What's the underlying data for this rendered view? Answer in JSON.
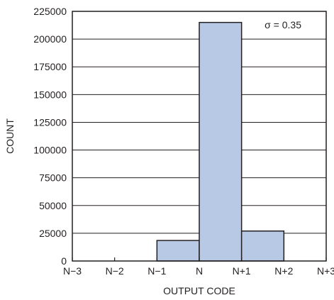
{
  "chart_data": {
    "type": "bar",
    "title": "",
    "xlabel": "OUTPUT CODE",
    "ylabel": "COUNT",
    "annotation": "σ = 0.35",
    "categories": [
      "N−3",
      "N−2",
      "N−1",
      "N",
      "N+1",
      "N+2",
      "N+3"
    ],
    "bars": [
      {
        "start": 2,
        "end": 3,
        "value": 18500
      },
      {
        "start": 3,
        "end": 4,
        "value": 215000
      },
      {
        "start": 4,
        "end": 5,
        "value": 27000
      }
    ],
    "yticks": [
      "0",
      "25000",
      "50000",
      "75000",
      "100000",
      "125000",
      "150000",
      "175000",
      "200000",
      "225000"
    ],
    "ylim": [
      0,
      225000
    ],
    "grid": true,
    "colors": {
      "bar_fill": "#b8c9e6",
      "stroke": "#231f20"
    }
  }
}
